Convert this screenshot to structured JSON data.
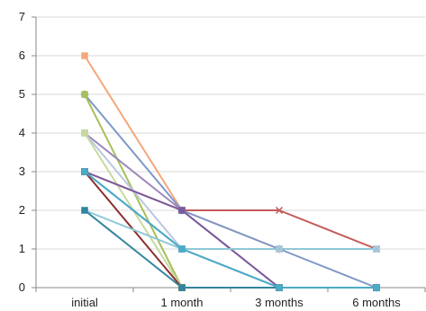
{
  "chart_data": {
    "type": "line",
    "title": "",
    "xlabel": "",
    "ylabel": "",
    "categories": [
      "initial",
      "1 month",
      "3 months",
      "6 months"
    ],
    "ylim": [
      0,
      7
    ],
    "yticks": [
      "0",
      "1",
      "2",
      "3",
      "4",
      "5",
      "6",
      "7"
    ],
    "grid": "horizontal",
    "legend": "none",
    "series": [
      {
        "color": "#F4A77A",
        "marker": "square",
        "values": [
          6,
          2,
          1,
          1
        ]
      },
      {
        "color": "#7E98C8",
        "marker": "diamond",
        "values": [
          5,
          2,
          1,
          0
        ]
      },
      {
        "color": "#A8BF5A",
        "marker": "square",
        "values": [
          5,
          0,
          0,
          0
        ]
      },
      {
        "color": "#C45A5A",
        "marker": "cross",
        "values": [
          3,
          2,
          2,
          1
        ]
      },
      {
        "color": "#9C86BC",
        "marker": "square",
        "values": [
          4,
          2,
          0,
          0
        ]
      },
      {
        "color": "#B8C8E0",
        "marker": "square",
        "values": [
          4,
          1,
          1,
          1
        ]
      },
      {
        "color": "#C7DA9E",
        "marker": "square",
        "values": [
          4,
          0,
          0,
          0
        ]
      },
      {
        "color": "#7B5A9C",
        "marker": "square",
        "values": [
          3,
          2,
          0,
          0
        ]
      },
      {
        "color": "#4F81BD",
        "marker": "square",
        "values": [
          3,
          1,
          0,
          0
        ]
      },
      {
        "color": "#8C2E2E",
        "marker": "square",
        "values": [
          3,
          0,
          0,
          0
        ]
      },
      {
        "color": "#8FC8D8",
        "marker": "cross",
        "values": [
          2,
          1,
          1,
          1
        ]
      },
      {
        "color": "#31859C",
        "marker": "square",
        "values": [
          2,
          0,
          0,
          0
        ]
      },
      {
        "color": "#4BACC6",
        "marker": "square",
        "values": [
          3,
          1,
          0,
          0
        ]
      }
    ]
  }
}
